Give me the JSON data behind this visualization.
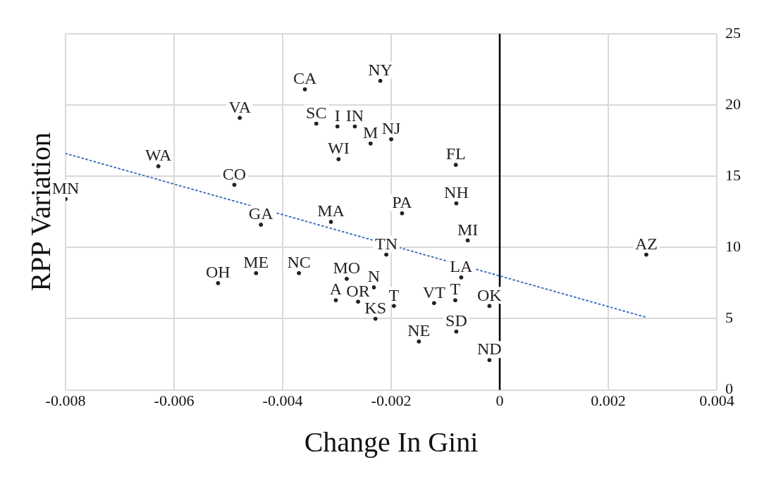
{
  "chart_data": {
    "type": "scatter",
    "xlabel": "Change In Gini",
    "ylabel": "RPP Variation",
    "xlim": [
      -0.008,
      0.004
    ],
    "xticks": [
      -0.008,
      -0.006,
      -0.004,
      -0.002,
      0,
      0.002,
      0.004
    ],
    "ylim": [
      0,
      25
    ],
    "yticks": [
      0,
      5,
      10,
      15,
      20,
      25
    ],
    "grid": true,
    "legend": false,
    "ref_lines": [
      {
        "axis": "x",
        "value": 0,
        "color": "#000000"
      }
    ],
    "series": [
      {
        "type": "scatter",
        "color": "#222222",
        "marker": "circle",
        "x": [
          -0.00359,
          -0.0022,
          -0.00479,
          -0.00338,
          -0.00267,
          -0.002,
          -0.00297,
          -0.00081,
          -0.00629,
          -0.00489,
          -0.008,
          -0.0008,
          -0.0018,
          -0.0044,
          -0.00311,
          -0.00059,
          -0.00209,
          0.0027,
          -0.00449,
          -0.0037,
          -0.00519,
          -0.00282,
          -0.00071,
          -0.00261,
          -0.00121,
          -0.00019,
          -0.00229,
          -0.0008,
          -0.00149,
          -0.00019,
          -0.00299,
          -0.00238,
          -0.00232,
          -0.00302,
          -0.00195,
          -0.00082
        ],
        "values": [
          21.1,
          21.7,
          19.1,
          18.7,
          18.5,
          17.6,
          16.2,
          15.8,
          15.7,
          14.4,
          13.4,
          13.1,
          12.4,
          11.6,
          11.8,
          10.5,
          9.5,
          9.5,
          8.2,
          8.2,
          7.5,
          7.8,
          7.9,
          6.2,
          6.1,
          5.9,
          5.0,
          4.1,
          3.4,
          2.1,
          18.5,
          17.3,
          7.2,
          6.3,
          5.9,
          6.3
        ],
        "value_labels": [
          "CA",
          "NY",
          "VA",
          "SC",
          "IN",
          "NJ",
          "WI",
          "FL",
          "WA",
          "CO",
          "MN",
          "NH",
          "PA",
          "GA",
          "MA",
          "MI",
          "TN",
          "AZ",
          "ME",
          "NC",
          "OH",
          "MO",
          "LA",
          "OR",
          "VT",
          "OK",
          "KS",
          "SD",
          "NE",
          "ND",
          "I",
          "M",
          "N",
          "A",
          "T",
          "T"
        ]
      },
      {
        "type": "line",
        "color": "#4472c4",
        "line_style": "dotted",
        "marker": "none",
        "x": [
          -0.008,
          0.0027
        ],
        "values": [
          16.6,
          5.1
        ]
      }
    ]
  }
}
